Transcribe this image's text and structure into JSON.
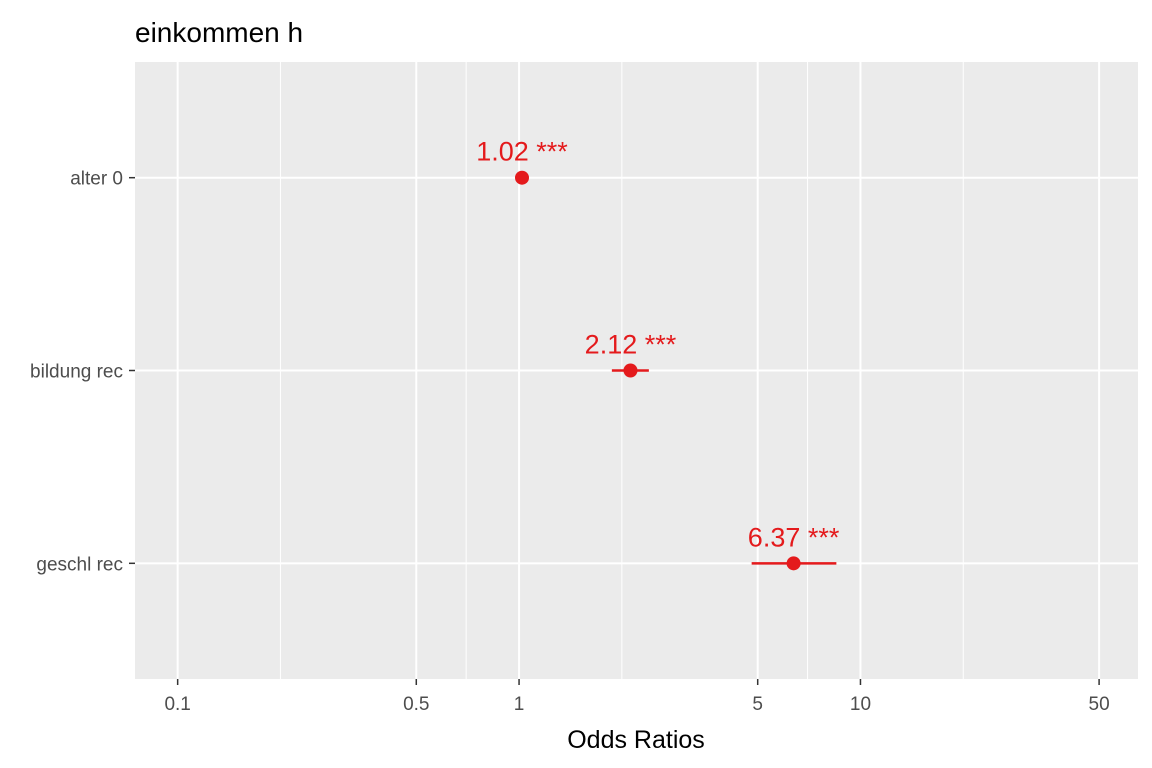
{
  "chart_data": {
    "type": "scatter",
    "title": "einkommen h",
    "xlabel": "Odds Ratios",
    "ylabel": "",
    "x_scale": "log",
    "xlim": [
      0.075,
      65
    ],
    "x_ticks": [
      0.1,
      0.5,
      1,
      5,
      10,
      50
    ],
    "x_tick_labels": [
      "0.1",
      "0.5",
      "1",
      "5",
      "10",
      "50"
    ],
    "x_minor_gridlines": [
      0.2,
      0.7,
      2,
      7,
      20
    ],
    "grid": true,
    "legend": "none",
    "categories": [
      "alter 0",
      "bildung rec",
      "geschl rec"
    ],
    "estimates": [
      1.02,
      2.12,
      6.37
    ],
    "ci_low": [
      0.995,
      1.87,
      4.8
    ],
    "ci_high": [
      1.045,
      2.4,
      8.5
    ],
    "labels": [
      "1.02 ***",
      "2.12 ***",
      "6.37 ***"
    ],
    "color": "#e41a1c",
    "panel_background": "#ebebeb",
    "grid_color": "#ffffff"
  }
}
